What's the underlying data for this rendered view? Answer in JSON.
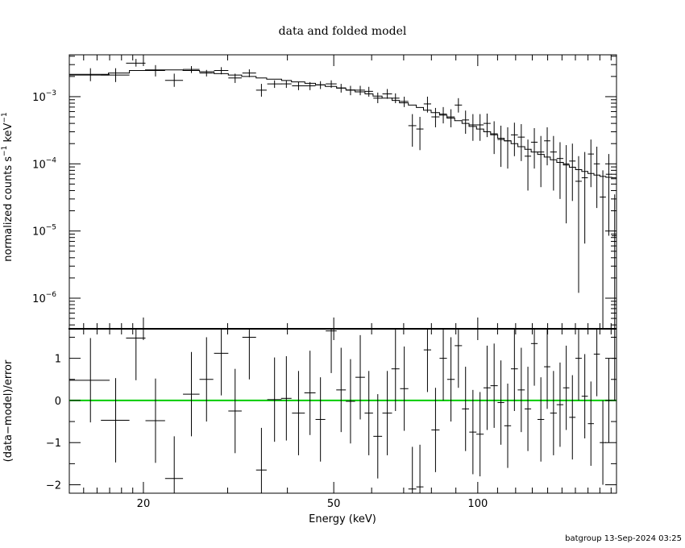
{
  "title": "data and folded model",
  "footer": "batgroup 13-Sep-2024 03:25",
  "colors": {
    "axes": "#000000",
    "data": "#000000",
    "model": "#000000",
    "zero_line": "#00cc00"
  },
  "chart_data": [
    {
      "type": "scatter",
      "panel": "top",
      "ylabel": "normalized counts s",
      "ylabel_sup1": "−1",
      "ylabel_mid": " keV",
      "ylabel_sup2": "−1",
      "xscale": "log",
      "yscale": "log",
      "xlim": [
        14,
        195
      ],
      "ylim": [
        3.5e-07,
        0.0042
      ],
      "yticks": [
        {
          "value": 0.001,
          "base": "10",
          "exp": "−3"
        },
        {
          "value": 0.0001,
          "base": "10",
          "exp": "−4"
        },
        {
          "value": 1e-05,
          "base": "10",
          "exp": "−5"
        },
        {
          "value": 1e-06,
          "base": "10",
          "exp": "−6"
        }
      ],
      "series": [
        {
          "kind": "data",
          "x": [
            15.5,
            17.5,
            19.3,
            21.2,
            23.2,
            25.2,
            27.1,
            29.1,
            31.1,
            33.3,
            35.3,
            37.6,
            39.8,
            42.2,
            44.6,
            46.9,
            49.4,
            51.8,
            54.2,
            56.8,
            59.2,
            61.8,
            64.7,
            67.3,
            70.2,
            73.0,
            75.7,
            78.5,
            81.6,
            84.7,
            87.9,
            91.1,
            94.3,
            97.7,
            101.1,
            104.6,
            108.2,
            111.8,
            115.5,
            119.3,
            123.3,
            127.3,
            131.3,
            135.5,
            139.7,
            144.0,
            148.6,
            153.1,
            157.7,
            162.5,
            167.4,
            172.4,
            177.4,
            182.6,
            187.9,
            193.3
          ],
          "xerr": [
            1.5,
            1.2,
            0.9,
            1.0,
            1.0,
            1.0,
            0.9,
            1.0,
            1.0,
            1.1,
            0.9,
            1.3,
            1.0,
            1.3,
            1.2,
            1.1,
            1.3,
            1.2,
            1.2,
            1.3,
            1.2,
            1.3,
            1.5,
            1.3,
            1.4,
            1.4,
            1.3,
            1.4,
            1.6,
            1.5,
            1.6,
            1.6,
            1.6,
            1.7,
            1.8,
            1.8,
            1.9,
            1.8,
            1.9,
            2.0,
            2.1,
            2.0,
            2.1,
            2.2,
            2.1,
            2.3,
            2.4,
            2.3,
            2.4,
            2.5,
            2.5,
            2.5,
            2.6,
            2.7,
            2.7,
            2.8
          ],
          "y": [
            0.00215,
            0.0021,
            0.00315,
            0.00245,
            0.00175,
            0.00255,
            0.00225,
            0.00245,
            0.0019,
            0.00225,
            0.00125,
            0.00155,
            0.00155,
            0.00145,
            0.00145,
            0.0015,
            0.00155,
            0.00135,
            0.00125,
            0.00125,
            0.0012,
            0.00095,
            0.0011,
            0.00095,
            0.00085,
            0.00037,
            0.00033,
            0.00078,
            0.0005,
            0.00055,
            0.0005,
            0.00075,
            0.00045,
            0.00038,
            0.00038,
            0.0004,
            0.00028,
            0.00023,
            0.00022,
            0.00027,
            0.00025,
            0.00013,
            0.00021,
            0.00015,
            0.00022,
            0.00015,
            0.00012,
            0.0001,
            0.00011,
            5.5e-05,
            6.2e-05,
            0.00014,
            0.0001,
            3.2e-05,
            7e-05,
            8.5e-06
          ],
          "ylo": [
            0.0017,
            0.00165,
            0.0028,
            0.002,
            0.0014,
            0.00225,
            0.002,
            0.00215,
            0.0016,
            0.00195,
            0.001,
            0.00135,
            0.00135,
            0.00125,
            0.00125,
            0.0013,
            0.00135,
            0.00115,
            0.00105,
            0.00105,
            0.001,
            0.0008,
            0.00093,
            0.0008,
            0.0007,
            0.00018,
            0.00016,
            0.00058,
            0.00035,
            0.0004,
            0.00035,
            0.00058,
            0.00028,
            0.00022,
            0.00022,
            0.00025,
            0.00014,
            9e-05,
            8.5e-05,
            0.00013,
            0.00011,
            4e-05,
            8.5e-05,
            4.5e-05,
            9.5e-05,
            4e-05,
            3e-05,
            1.3e-05,
            2.8e-05,
            1.2e-06,
            6.5e-06,
            4.5e-05,
            2.2e-05,
            3.5e-07,
            8.5e-06,
            3.5e-07
          ],
          "yhi": [
            0.00265,
            0.00265,
            0.00365,
            0.00295,
            0.0022,
            0.00285,
            0.0025,
            0.00275,
            0.0022,
            0.00255,
            0.00155,
            0.00175,
            0.00175,
            0.00165,
            0.00165,
            0.0017,
            0.00175,
            0.00155,
            0.00145,
            0.00145,
            0.0014,
            0.00115,
            0.0013,
            0.00112,
            0.001,
            0.00055,
            0.0005,
            0.001,
            0.00068,
            0.0007,
            0.00065,
            0.00095,
            0.00062,
            0.00055,
            0.00055,
            0.00056,
            0.00043,
            0.00037,
            0.00035,
            0.00041,
            0.00039,
            0.00023,
            0.00034,
            0.00026,
            0.00035,
            0.00026,
            0.00021,
            0.00019,
            0.0002,
            0.00013,
            0.00015,
            0.00023,
            0.00018,
            8e-05,
            0.00014,
            3.5e-05
          ]
        },
        {
          "kind": "model",
          "edges": [
            14.0,
            16.9,
            18.7,
            20.2,
            22.2,
            24.2,
            26.2,
            28.1,
            30.1,
            32.1,
            34.4,
            36.2,
            38.9,
            40.8,
            43.5,
            45.8,
            48.0,
            50.7,
            53.0,
            55.4,
            58.1,
            60.4,
            63.1,
            66.2,
            68.6,
            71.6,
            74.4,
            77.0,
            79.9,
            83.2,
            86.2,
            89.5,
            92.7,
            95.9,
            99.4,
            102.9,
            106.4,
            110.1,
            113.6,
            117.4,
            121.3,
            125.4,
            129.3,
            133.4,
            137.7,
            141.8,
            146.3,
            151.0,
            155.4,
            160.1,
            165.0,
            169.9,
            174.9,
            180.0,
            185.3,
            190.6,
            195.0
          ],
          "values": [
            0.0021,
            0.00225,
            0.00245,
            0.0025,
            0.0025,
            0.00245,
            0.00235,
            0.0022,
            0.0021,
            0.002,
            0.0019,
            0.00182,
            0.00174,
            0.00166,
            0.00158,
            0.0015,
            0.00142,
            0.00134,
            0.00126,
            0.00118,
            0.0011,
            0.00102,
            0.00095,
            0.00088,
            0.00081,
            0.00075,
            0.00069,
            0.00063,
            0.00058,
            0.00053,
            0.00048,
            0.00044,
            0.0004,
            0.00036,
            0.00033,
            0.0003,
            0.00027,
            0.00024,
            0.00022,
            0.0002,
            0.00018,
            0.000165,
            0.00015,
            0.000138,
            0.000126,
            0.000115,
            0.000105,
            9.6e-05,
            8.9e-05,
            8.2e-05,
            7.7e-05,
            7.2e-05,
            6.8e-05,
            6.5e-05,
            6.3e-05,
            6.2e-05
          ]
        }
      ]
    },
    {
      "type": "scatter",
      "panel": "bottom",
      "xlabel": "Energy (keV)",
      "ylabel": "(data−model)/error",
      "xscale": "log",
      "xlim": [
        14,
        195
      ],
      "ylim": [
        -2.2,
        1.7
      ],
      "xticks": [
        {
          "value": 20,
          "label": "20"
        },
        {
          "value": 50,
          "label": "50"
        },
        {
          "value": 100,
          "label": "100"
        }
      ],
      "yticks": [
        {
          "value": 1,
          "label": "1"
        },
        {
          "value": 0,
          "label": "0"
        },
        {
          "value": -1,
          "label": "−1"
        },
        {
          "value": -2,
          "label": "−2"
        }
      ],
      "zero_line": 0,
      "series": [
        {
          "kind": "residuals",
          "x": [
            15.5,
            17.5,
            19.3,
            21.2,
            23.2,
            25.2,
            27.1,
            29.1,
            31.1,
            33.3,
            35.3,
            37.6,
            39.8,
            42.2,
            44.6,
            46.9,
            49.4,
            51.8,
            54.2,
            56.8,
            59.2,
            61.8,
            64.7,
            67.3,
            70.2,
            73.0,
            75.7,
            78.5,
            81.6,
            84.7,
            87.9,
            91.1,
            94.3,
            97.7,
            101.1,
            104.6,
            108.2,
            111.8,
            115.5,
            119.3,
            123.3,
            127.3,
            131.3,
            135.5,
            139.7,
            144.0,
            148.6,
            153.1,
            157.7,
            162.5,
            167.4,
            172.4,
            177.4,
            182.6,
            187.9,
            193.3
          ],
          "y": [
            0.48,
            -0.47,
            1.48,
            -0.48,
            -1.85,
            0.15,
            0.5,
            1.12,
            -0.25,
            1.5,
            -1.65,
            0.02,
            0.05,
            -0.3,
            0.18,
            -0.45,
            1.65,
            0.25,
            -0.02,
            0.55,
            -0.3,
            -0.85,
            -0.3,
            0.75,
            0.28,
            -2.1,
            -2.05,
            1.2,
            -0.7,
            1.0,
            0.5,
            1.3,
            -0.2,
            -0.75,
            -0.8,
            0.3,
            0.35,
            -0.05,
            -0.6,
            0.75,
            0.25,
            -0.2,
            1.35,
            -0.45,
            0.8,
            -0.3,
            -0.1,
            0.3,
            -0.4,
            1.0,
            0.1,
            -0.55,
            1.1,
            -1.0,
            0.0,
            1.0
          ],
          "err": 1
        }
      ]
    }
  ]
}
